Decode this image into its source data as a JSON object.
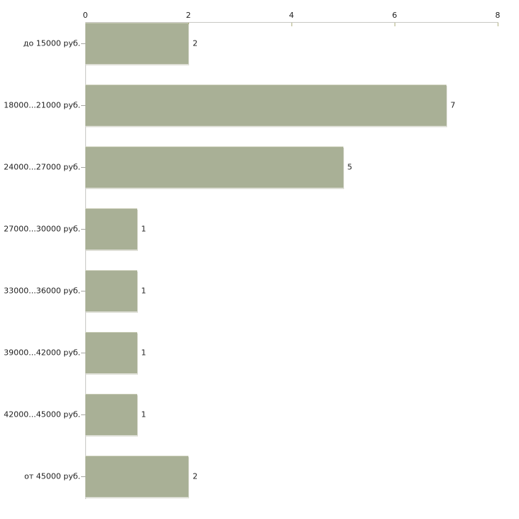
{
  "chart_data": {
    "type": "bar",
    "orientation": "horizontal",
    "title": "",
    "xlabel": "",
    "ylabel": "",
    "categories": [
      "до 15000 руб.",
      "18000...21000 руб.",
      "24000...27000 руб.",
      "27000...30000 руб.",
      "33000...36000 руб.",
      "39000...42000 руб.",
      "42000...45000 руб.",
      "от 45000 руб."
    ],
    "values": [
      2,
      7,
      5,
      1,
      1,
      1,
      1,
      2
    ],
    "value_labels": [
      "2",
      "7",
      "5",
      "1",
      "1",
      "1",
      "1",
      "2"
    ],
    "xlim": [
      0,
      8
    ],
    "xticks": [
      0,
      2,
      4,
      6,
      8
    ],
    "axis_position": "top",
    "grid": false,
    "legend": null,
    "colors": {
      "bar_fill": "#a9b096",
      "bar_highlight": "#c6cab3",
      "bar_shadow": "#dedfd6",
      "axis_line": "#c8c8c4",
      "tick_mark": "#b0b080",
      "category_tick": "#a5a5a0",
      "text": "#222222",
      "background": "#ffffff"
    }
  }
}
